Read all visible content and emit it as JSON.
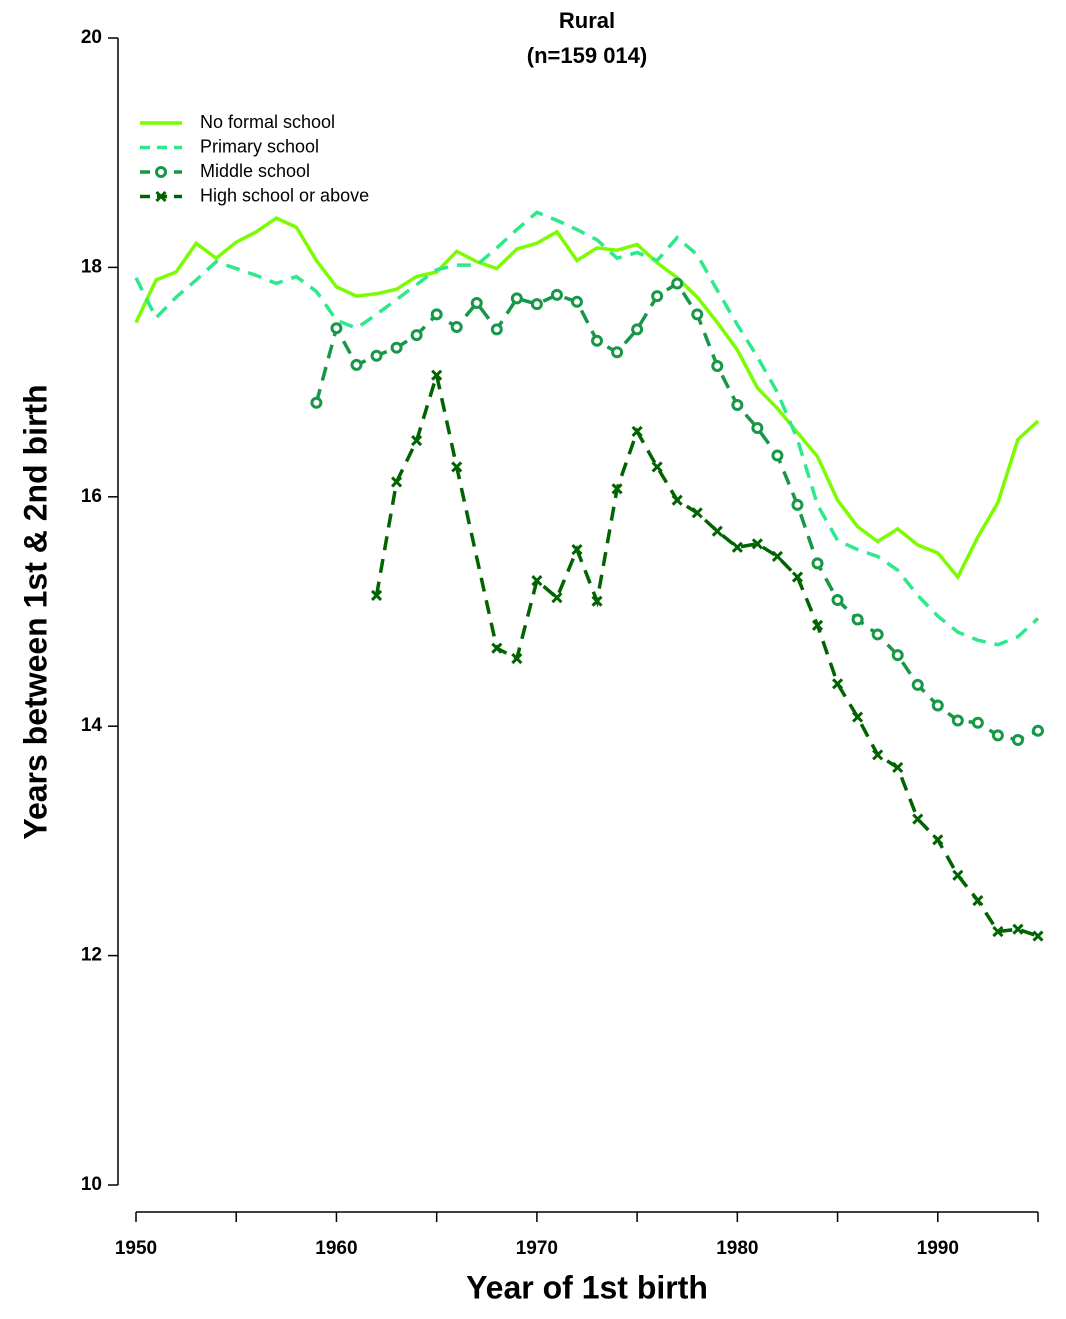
{
  "chart_data": {
    "type": "line",
    "title": "Rural",
    "subtitle": "(n=159 014)",
    "x_label": "Year of 1st birth",
    "y_label": "Years between 1st & 2nd birth",
    "xlim": [
      1950,
      1995
    ],
    "ylim": [
      10,
      20
    ],
    "xticks": [
      1950,
      1960,
      1970,
      1980,
      1990
    ],
    "xticks_minor": [
      1955,
      1965,
      1975,
      1985,
      1995
    ],
    "yticks": [
      10,
      12,
      14,
      16,
      18,
      20
    ],
    "grid": false,
    "legend": "top-left",
    "series": [
      {
        "name": "No formal school",
        "color": "#7cfc00",
        "line_style": "solid",
        "marker": "none",
        "x": [
          1950,
          1951,
          1952,
          1953,
          1954,
          1955,
          1956,
          1957,
          1958,
          1959,
          1960,
          1961,
          1962,
          1963,
          1964,
          1965,
          1966,
          1967,
          1968,
          1969,
          1970,
          1971,
          1972,
          1973,
          1974,
          1975,
          1976,
          1977,
          1978,
          1979,
          1980,
          1981,
          1982,
          1983,
          1984,
          1985,
          1986,
          1987,
          1988,
          1989,
          1990,
          1991,
          1992,
          1993,
          1994,
          1995
        ],
        "values": [
          17.52,
          17.89,
          17.96,
          18.21,
          18.08,
          18.22,
          18.31,
          18.43,
          18.35,
          18.06,
          17.83,
          17.75,
          17.77,
          17.81,
          17.92,
          17.96,
          18.14,
          18.05,
          17.99,
          18.16,
          18.21,
          18.31,
          18.06,
          18.17,
          18.15,
          18.2,
          18.04,
          17.91,
          17.74,
          17.52,
          17.28,
          16.95,
          16.77,
          16.56,
          16.35,
          15.97,
          15.74,
          15.61,
          15.72,
          15.58,
          15.51,
          15.3,
          15.65,
          15.95,
          16.5,
          16.66
        ]
      },
      {
        "name": "Primary school",
        "color": "#2ee88c",
        "line_style": "dashed",
        "marker": "none",
        "x": [
          1950,
          1951,
          1952,
          1953,
          1954,
          1955,
          1956,
          1957,
          1958,
          1959,
          1960,
          1961,
          1962,
          1963,
          1964,
          1965,
          1966,
          1967,
          1968,
          1969,
          1970,
          1971,
          1972,
          1973,
          1974,
          1975,
          1976,
          1977,
          1978,
          1979,
          1980,
          1981,
          1982,
          1983,
          1984,
          1985,
          1986,
          1987,
          1988,
          1989,
          1990,
          1991,
          1992,
          1993,
          1994,
          1995
        ],
        "values": [
          17.91,
          17.56,
          17.74,
          17.89,
          18.05,
          17.99,
          17.93,
          17.86,
          17.92,
          17.79,
          17.54,
          17.47,
          17.59,
          17.72,
          17.85,
          17.98,
          18.02,
          18.02,
          18.17,
          18.33,
          18.48,
          18.41,
          18.33,
          18.24,
          18.08,
          18.13,
          18.06,
          18.26,
          18.11,
          17.8,
          17.5,
          17.22,
          16.91,
          16.5,
          15.93,
          15.62,
          15.54,
          15.48,
          15.36,
          15.14,
          14.96,
          14.82,
          14.75,
          14.71,
          14.78,
          14.94
        ]
      },
      {
        "name": "Middle school",
        "color": "#169848",
        "line_style": "dashed",
        "marker": "circle",
        "x": [
          1959,
          1960,
          1961,
          1962,
          1963,
          1964,
          1965,
          1966,
          1967,
          1968,
          1969,
          1970,
          1971,
          1972,
          1973,
          1974,
          1975,
          1976,
          1977,
          1978,
          1979,
          1980,
          1981,
          1982,
          1983,
          1984,
          1985,
          1986,
          1987,
          1988,
          1989,
          1990,
          1991,
          1992,
          1993,
          1994,
          1995
        ],
        "values": [
          16.82,
          17.47,
          17.15,
          17.23,
          17.3,
          17.41,
          17.59,
          17.48,
          17.69,
          17.46,
          17.73,
          17.68,
          17.76,
          17.7,
          17.36,
          17.26,
          17.46,
          17.75,
          17.86,
          17.59,
          17.14,
          16.8,
          16.6,
          16.36,
          15.93,
          15.42,
          15.1,
          14.93,
          14.8,
          14.62,
          14.36,
          14.18,
          14.05,
          14.03,
          13.92,
          13.88,
          13.96
        ]
      },
      {
        "name": "High school or above",
        "color": "#006400",
        "line_style": "dashed",
        "marker": "x",
        "x": [
          1962,
          1963,
          1964,
          1965,
          1966,
          1968,
          1969,
          1970,
          1971,
          1972,
          1973,
          1974,
          1975,
          1976,
          1977,
          1978,
          1979,
          1980,
          1981,
          1982,
          1983,
          1984,
          1985,
          1986,
          1987,
          1988,
          1989,
          1990,
          1991,
          1992,
          1993,
          1994,
          1995
        ],
        "values": [
          15.14,
          16.13,
          16.49,
          17.06,
          16.26,
          14.68,
          14.59,
          15.27,
          15.12,
          15.54,
          15.09,
          16.07,
          16.57,
          16.26,
          15.97,
          15.86,
          15.7,
          15.56,
          15.59,
          15.48,
          15.3,
          14.88,
          14.37,
          14.08,
          13.75,
          13.64,
          13.19,
          13.01,
          12.7,
          12.48,
          12.21,
          12.23,
          12.17
        ]
      }
    ]
  }
}
